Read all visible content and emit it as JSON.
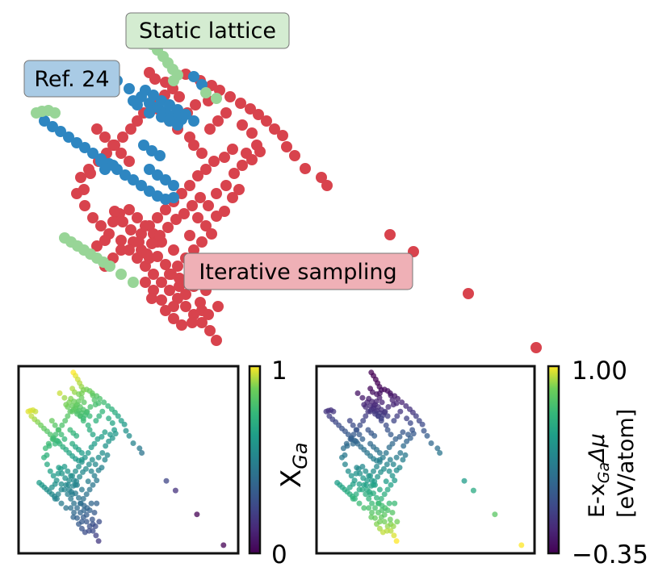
{
  "chart_data": [
    {
      "type": "scatter",
      "panel": "main",
      "title": "",
      "xlabel": "",
      "ylabel": "",
      "series": [
        {
          "name": "Iterative sampling",
          "color": "#d8434d",
          "points": [
            [
              185,
              90
            ],
            [
              192,
              98
            ],
            [
              205,
              102
            ],
            [
              230,
              92
            ],
            [
              248,
              100
            ],
            [
              262,
              106
            ],
            [
              272,
              112
            ],
            [
              285,
              120
            ],
            [
              298,
              128
            ],
            [
              310,
              135
            ],
            [
              320,
              142
            ],
            [
              330,
              150
            ],
            [
              340,
              160
            ],
            [
              350,
              168
            ],
            [
              355,
              182
            ],
            [
              365,
              193
            ],
            [
              378,
              209
            ],
            [
              398,
              220
            ],
            [
              405,
              230
            ],
            [
              300,
              155
            ],
            [
              312,
              165
            ],
            [
              318,
              180
            ],
            [
              305,
              190
            ],
            [
              288,
              185
            ],
            [
              278,
              195
            ],
            [
              265,
              200
            ],
            [
              255,
              210
            ],
            [
              245,
              218
            ],
            [
              235,
              230
            ],
            [
              225,
              240
            ],
            [
              215,
              250
            ],
            [
              205,
              260
            ],
            [
              195,
              270
            ],
            [
              185,
              280
            ],
            [
              175,
              290
            ],
            [
              165,
              300
            ],
            [
              150,
              310
            ],
            [
              140,
              320
            ],
            [
              130,
              330
            ],
            [
              200,
              140
            ],
            [
              210,
              150
            ],
            [
              220,
              160
            ],
            [
              235,
              170
            ],
            [
              240,
              180
            ],
            [
              250,
              190
            ],
            [
              260,
              160
            ],
            [
              270,
              150
            ],
            [
              280,
              140
            ],
            [
              160,
              200
            ],
            [
              150,
              190
            ],
            [
              140,
              180
            ],
            [
              130,
              170
            ],
            [
              120,
              160
            ],
            [
              110,
              210
            ],
            [
              100,
              220
            ],
            [
              95,
              240
            ],
            [
              105,
              255
            ],
            [
              115,
              270
            ],
            [
              125,
              280
            ],
            [
              135,
              290
            ],
            [
              150,
              298
            ],
            [
              160,
              310
            ],
            [
              170,
              320
            ],
            [
              180,
              330
            ],
            [
              190,
              340
            ],
            [
              200,
              350
            ],
            [
              210,
              360
            ],
            [
              220,
              370
            ],
            [
              230,
              380
            ],
            [
              240,
              390
            ],
            [
              250,
              400
            ],
            [
              260,
              410
            ],
            [
              268,
              422
            ],
            [
              190,
              360
            ],
            [
              200,
              372
            ],
            [
              205,
              385
            ],
            [
              215,
              395
            ],
            [
              225,
              403
            ],
            [
              245,
              270
            ],
            [
              255,
              280
            ],
            [
              262,
              290
            ],
            [
              250,
              300
            ],
            [
              240,
              310
            ],
            [
              230,
              320
            ],
            [
              220,
              330
            ],
            [
              212,
              340
            ],
            [
              200,
              300
            ],
            [
              190,
              290
            ],
            [
              180,
              280
            ],
            [
              170,
              270
            ],
            [
              160,
              260
            ],
            [
              148,
              265
            ],
            [
              140,
              275
            ],
            [
              130,
              298
            ],
            [
              120,
              305
            ],
            [
              175,
              310
            ],
            [
              185,
              320
            ],
            [
              195,
              300
            ],
            [
              215,
              310
            ],
            [
              235,
              292
            ],
            [
              245,
              340
            ],
            [
              240,
              355
            ],
            [
              230,
              365
            ],
            [
              255,
              360
            ],
            [
              222,
              355
            ],
            [
              205,
              328
            ],
            [
              195,
              318
            ],
            [
              180,
              350
            ],
            [
              215,
              380
            ],
            [
              250,
              385
            ],
            [
              238,
              400
            ],
            [
              188,
              370
            ],
            [
              270,
              380
            ],
            [
              483,
              291
            ],
            [
              512,
              312
            ],
            [
              580,
              364
            ],
            [
              664,
              431
            ],
            [
              258,
              125
            ],
            [
              242,
              130
            ],
            [
              232,
              140
            ],
            [
              222,
              120
            ],
            [
              214,
              110
            ],
            [
              204,
              118
            ],
            [
              196,
              128
            ],
            [
              188,
              136
            ],
            [
              178,
              140
            ],
            [
              170,
              150
            ],
            [
              162,
              160
            ],
            [
              152,
              170
            ],
            [
              142,
              180
            ],
            [
              132,
              190
            ],
            [
              122,
              200
            ],
            [
              112,
              215
            ],
            [
              104,
              235
            ],
            [
              248,
              245
            ],
            [
              238,
              255
            ],
            [
              228,
              265
            ],
            [
              218,
              272
            ],
            [
              208,
              282
            ],
            [
              198,
              292
            ],
            [
              188,
              302
            ],
            [
              182,
              315
            ],
            [
              172,
              300
            ],
            [
              162,
              285
            ],
            [
              152,
              275
            ],
            [
              142,
              262
            ],
            [
              268,
              268
            ],
            [
              278,
              262
            ],
            [
              288,
              245
            ],
            [
              296,
              235
            ],
            [
              258,
              255
            ],
            [
              268,
              240
            ],
            [
              280,
              230
            ],
            [
              290,
              215
            ],
            [
              300,
              205
            ],
            [
              312,
              198
            ],
            [
              322,
              188
            ],
            [
              210,
              340
            ],
            [
              222,
              345
            ],
            [
              232,
              350
            ],
            [
              262,
              340
            ],
            [
              258,
              390
            ],
            [
              248,
              375
            ]
          ]
        },
        {
          "name": "Ref. 24",
          "color": "#2e86c1",
          "points": [
            [
              145,
              100
            ],
            [
              160,
              110
            ],
            [
              175,
              120
            ],
            [
              185,
              128
            ],
            [
              195,
              133
            ],
            [
              205,
              138
            ],
            [
              215,
              143
            ],
            [
              225,
              148
            ],
            [
              180,
              112
            ],
            [
              190,
              118
            ],
            [
              200,
              125
            ],
            [
              210,
              130
            ],
            [
              220,
              136
            ],
            [
              230,
              142
            ],
            [
              240,
              150
            ],
            [
              170,
              130
            ],
            [
              165,
              125
            ],
            [
              185,
              140
            ],
            [
              200,
              145
            ],
            [
              210,
              150
            ],
            [
              220,
              155
            ],
            [
              240,
              95
            ],
            [
              250,
              105
            ],
            [
              55,
              150
            ],
            [
              65,
              157
            ],
            [
              75,
              163
            ],
            [
              85,
              170
            ],
            [
              95,
              177
            ],
            [
              105,
              183
            ],
            [
              115,
              190
            ],
            [
              125,
              197
            ],
            [
              135,
              203
            ],
            [
              145,
              210
            ],
            [
              155,
              217
            ],
            [
              165,
              223
            ],
            [
              175,
              230
            ],
            [
              185,
              237
            ],
            [
              195,
              243
            ],
            [
              205,
              247
            ],
            [
              215,
              245
            ],
            [
              185,
              210
            ],
            [
              195,
              217
            ],
            [
              205,
              223
            ],
            [
              215,
              230
            ],
            [
              178,
              180
            ],
            [
              188,
              187
            ],
            [
              198,
              193
            ],
            [
              125,
              200
            ],
            [
              130,
              210
            ],
            [
              140,
              205
            ]
          ]
        },
        {
          "name": "Static lattice",
          "color": "#98d597",
          "points": [
            [
              188,
              55
            ],
            [
              195,
              62
            ],
            [
              202,
              70
            ],
            [
              208,
              78
            ],
            [
              214,
              86
            ],
            [
              220,
              93
            ],
            [
              215,
              100
            ],
            [
              255,
              115
            ],
            [
              268,
              122
            ],
            [
              45,
              140
            ],
            [
              52,
              138
            ],
            [
              60,
              137
            ],
            [
              68,
              140
            ],
            [
              80,
              295
            ],
            [
              88,
              300
            ],
            [
              96,
              305
            ],
            [
              104,
              310
            ],
            [
              112,
              315
            ],
            [
              120,
              320
            ],
            [
              128,
              325
            ],
            [
              136,
              330
            ],
            [
              150,
              340
            ],
            [
              165,
              350
            ]
          ]
        }
      ],
      "annotations": [
        "Static lattice",
        "Ref. 24",
        "Iterative sampling"
      ]
    },
    {
      "type": "scatter",
      "panel": "inset-left",
      "colorbar": {
        "label": "X_Ga",
        "min": 0,
        "max": 1,
        "tick_labels": [
          "1",
          "0"
        ]
      }
    },
    {
      "type": "scatter",
      "panel": "inset-right",
      "colorbar": {
        "label": "E-x_Ga Δμ [eV/atom]",
        "min": -0.35,
        "max": 1.0,
        "tick_labels": [
          "1.00",
          "−0.35"
        ]
      }
    }
  ],
  "labels": {
    "static": "Static lattice",
    "ref": "Ref. 24",
    "iter": "Iterative sampling",
    "cb1_max": "1",
    "cb1_min": "0",
    "cb2_max": "1.00",
    "cb2_min": "−0.35",
    "cb2_title_1": "E-x",
    "cb2_title_sub": "Ga",
    "cb2_title_2": "Δμ",
    "cb2_title_line2": "[eV/atom]",
    "cb1_title_main": "X",
    "cb1_title_sub": "Ga"
  },
  "colors": {
    "iter": "#d8434d",
    "ref": "#2e86c1",
    "static": "#98d597",
    "iter_box": "#efb0b6",
    "ref_box": "#a9cbe5",
    "static_box": "#d4ecd1"
  }
}
